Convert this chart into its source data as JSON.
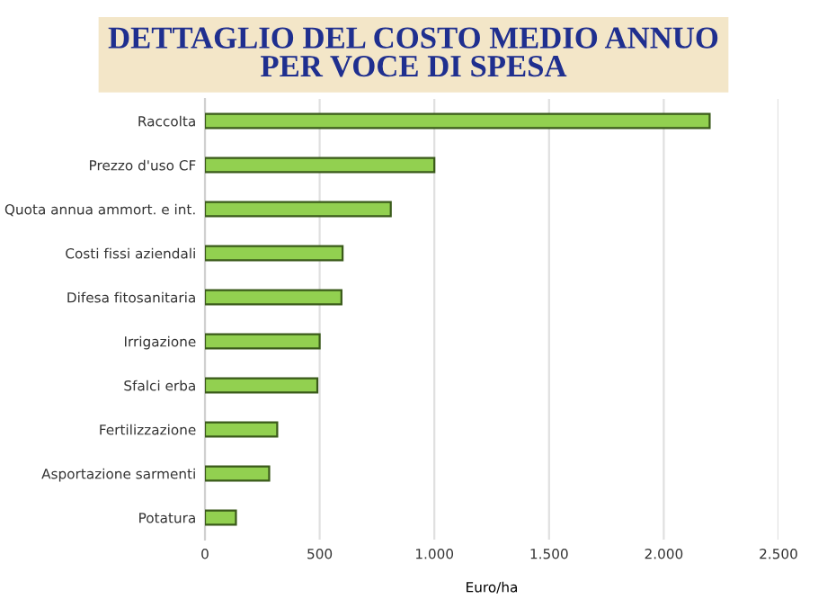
{
  "chart_data": {
    "type": "bar",
    "orientation": "horizontal",
    "title": "DETTAGLIO DEL COSTO MEDIO ANNUO\nPER VOCE DI SPESA",
    "xlabel": "Euro/ha",
    "categories": [
      "Raccolta",
      "Prezzo d'uso CF",
      "Quota annua ammort. e int.",
      "Costi fissi aziendali",
      "Difesa fitosanitaria",
      "Irrigazione",
      "Sfalci erba",
      "Fertilizzazione",
      "Asportazione sarmenti",
      "Potatura"
    ],
    "values": [
      2200,
      1000,
      810,
      600,
      595,
      500,
      490,
      315,
      280,
      135
    ],
    "color": "#92d050",
    "xlim": [
      0,
      2500
    ],
    "xticks": [
      0,
      500,
      {
        "value": 1000,
        "label": "1.000"
      },
      {
        "value": 1500,
        "label": "1.500"
      },
      {
        "value": 2000,
        "label": "2.000"
      },
      {
        "value": 2500,
        "label": "2.500"
      }
    ],
    "grid": "x",
    "legend": false
  }
}
